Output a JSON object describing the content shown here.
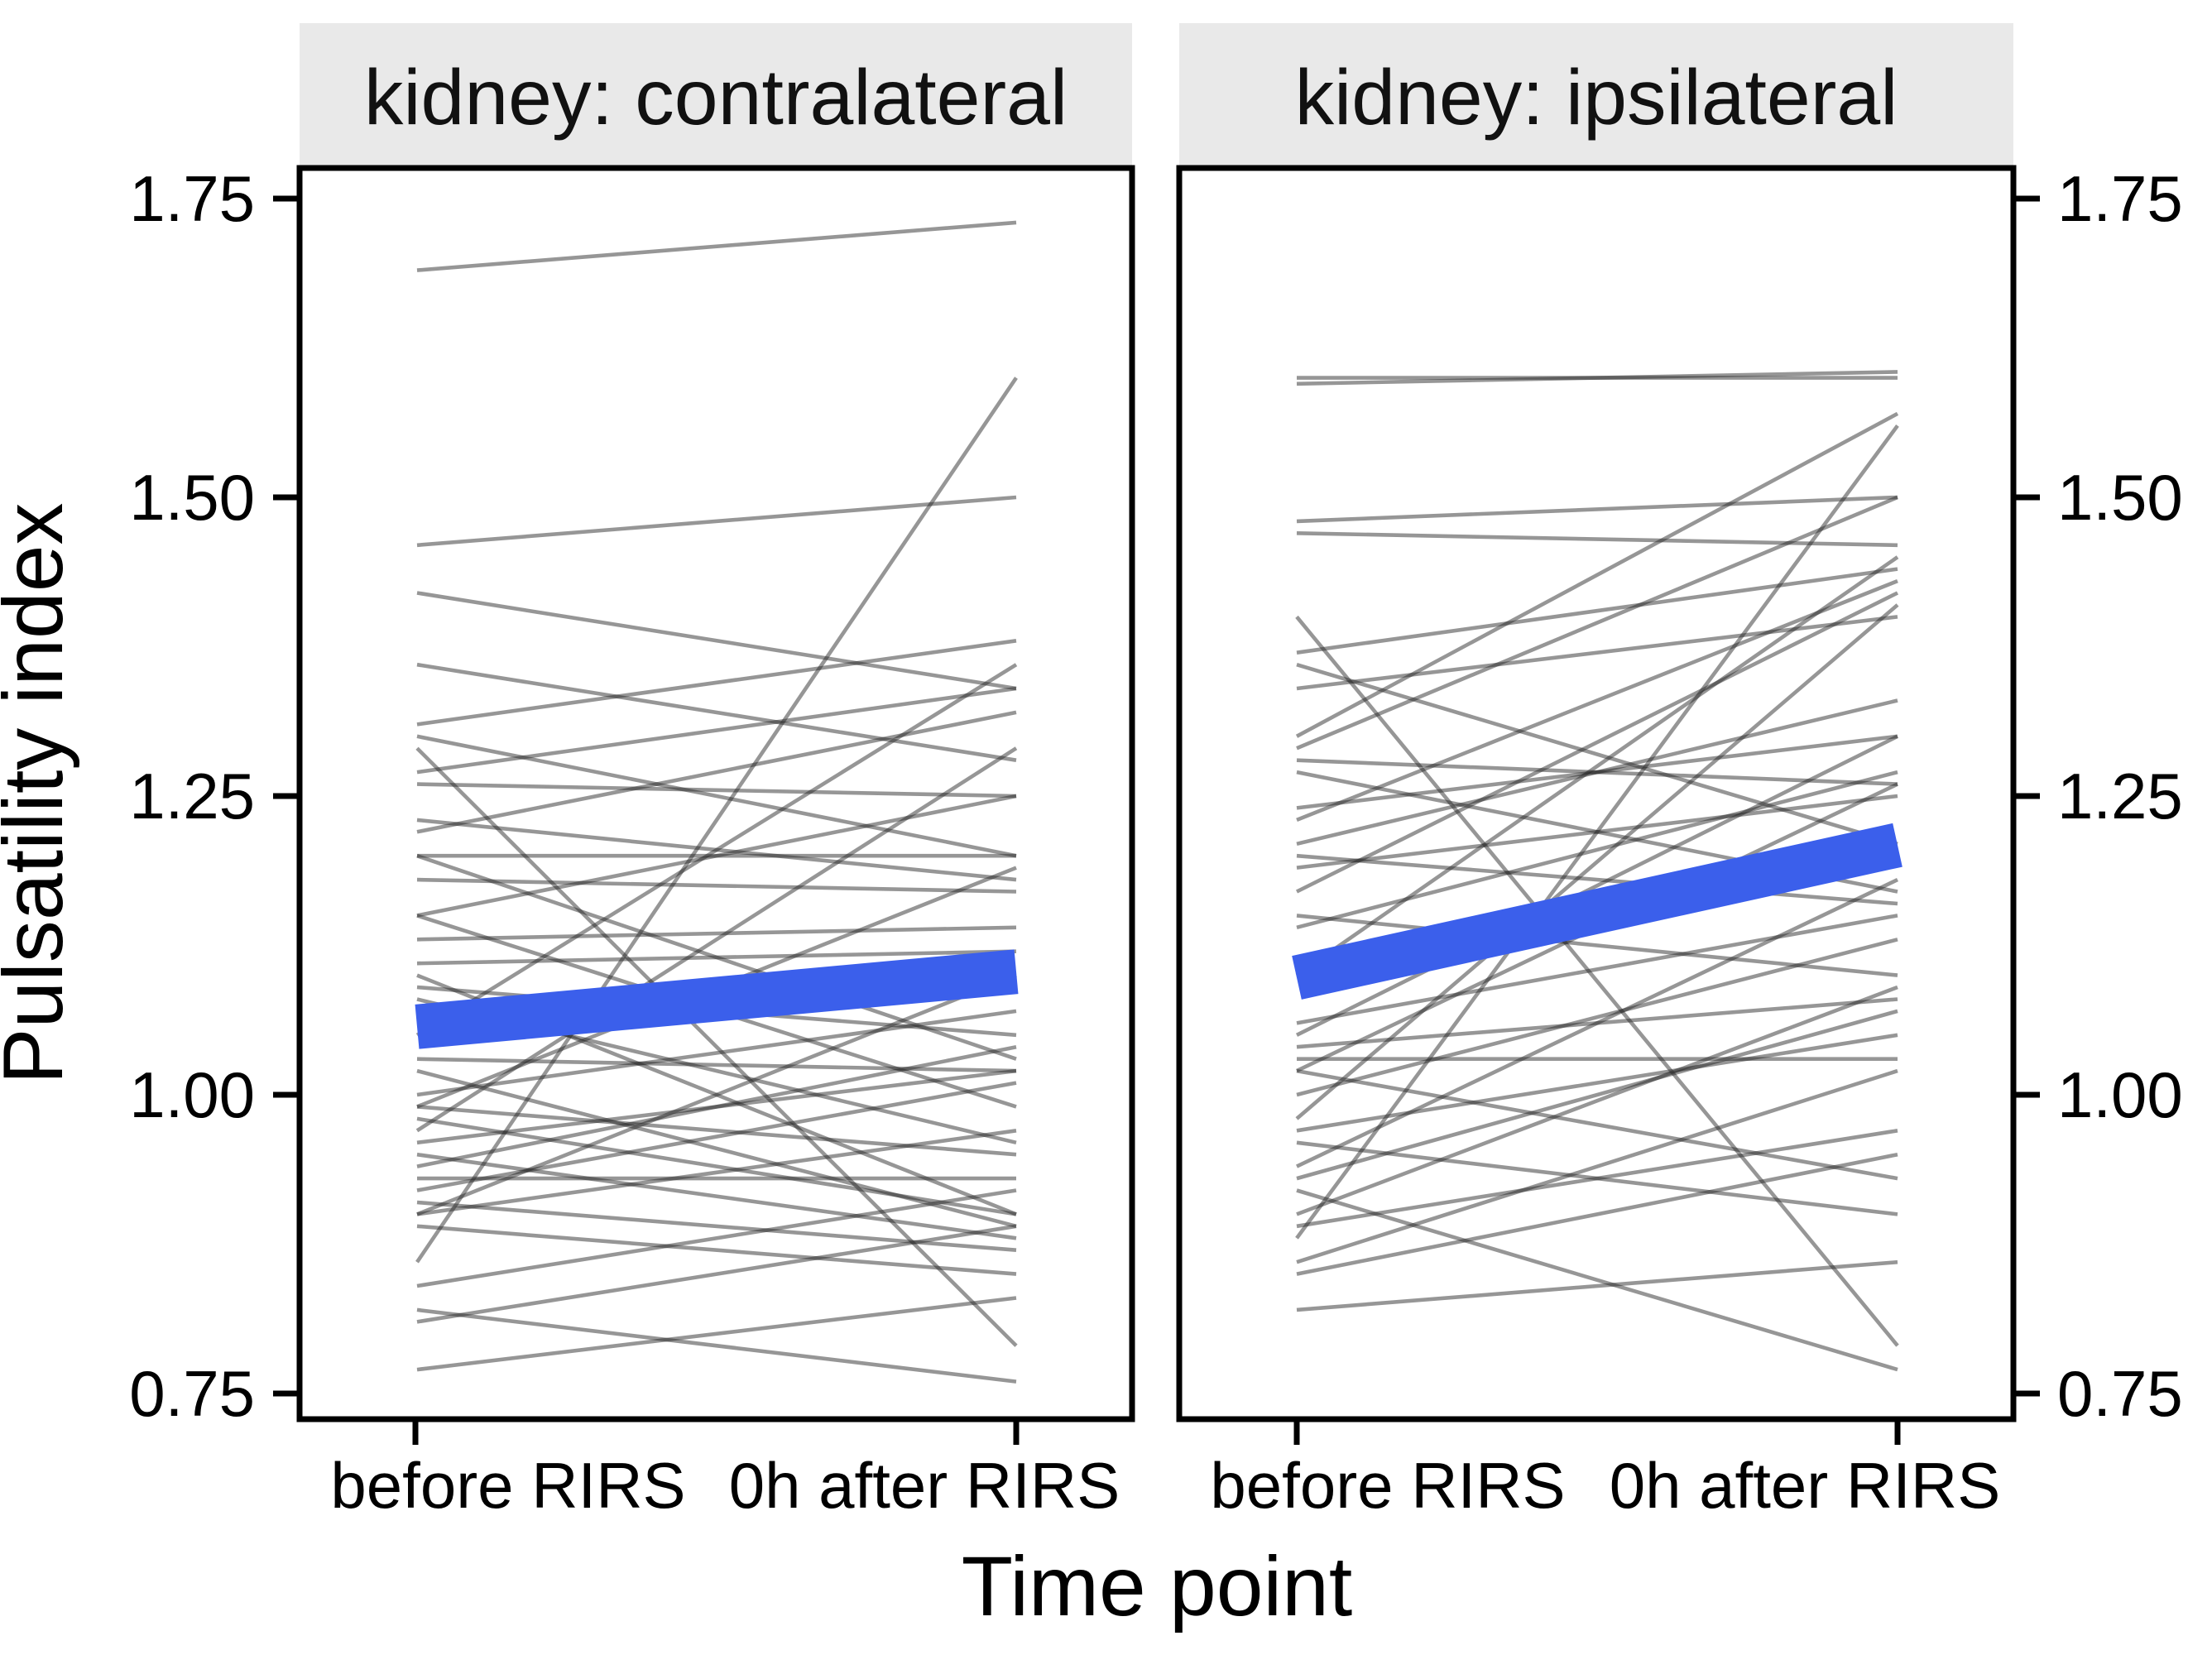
{
  "figure": {
    "colors": {
      "mean_line": "#3B5FEB",
      "subject_line": "rgba(35,35,35,0.48)",
      "strip_background": "#E9E9E9",
      "panel_border": "#000000"
    }
  },
  "chart_data": {
    "type": "line",
    "title": "",
    "xlabel": "Time point",
    "ylabel": "Pulsatility index",
    "ylim": [
      0.73,
      1.77
    ],
    "grid": "off",
    "legend": "none",
    "y_ticks": [
      1.75,
      1.5,
      1.25,
      1.0,
      0.75
    ],
    "y_tick_labels": [
      "1.75",
      "1.50",
      "1.25",
      "1.00",
      "0.75"
    ],
    "facets": [
      {
        "label": "kidney: contralateral",
        "categories": [
          "before RIRS",
          "0h after RIRS"
        ],
        "mean": [
          1.057,
          1.103
        ],
        "subjects": [
          [
            1.69,
            1.73
          ],
          [
            1.46,
            1.5
          ],
          [
            1.42,
            1.34
          ],
          [
            1.36,
            1.28
          ],
          [
            1.31,
            1.38
          ],
          [
            1.3,
            1.2
          ],
          [
            1.29,
            0.79
          ],
          [
            1.27,
            1.34
          ],
          [
            1.26,
            1.25
          ],
          [
            1.23,
            1.18
          ],
          [
            1.22,
            1.32
          ],
          [
            1.2,
            1.2
          ],
          [
            1.2,
            1.03
          ],
          [
            1.18,
            1.17
          ],
          [
            1.15,
            1.25
          ],
          [
            1.15,
            0.99
          ],
          [
            1.13,
            1.14
          ],
          [
            1.11,
            1.12
          ],
          [
            1.1,
            0.9
          ],
          [
            1.09,
            1.05
          ],
          [
            1.08,
            0.96
          ],
          [
            1.05,
            1.36
          ],
          [
            1.03,
            1.02
          ],
          [
            1.02,
            0.89
          ],
          [
            1.0,
            1.07
          ],
          [
            0.99,
            1.19
          ],
          [
            0.99,
            0.95
          ],
          [
            0.98,
            0.9
          ],
          [
            0.97,
            1.29
          ],
          [
            0.96,
            1.02
          ],
          [
            0.95,
            0.88
          ],
          [
            0.94,
            1.04
          ],
          [
            0.93,
            0.93
          ],
          [
            0.92,
            1.01
          ],
          [
            0.91,
            0.87
          ],
          [
            0.9,
            1.1
          ],
          [
            0.9,
            0.97
          ],
          [
            0.89,
            0.85
          ],
          [
            0.86,
            1.6
          ],
          [
            0.84,
            0.92
          ],
          [
            0.82,
            0.76
          ],
          [
            0.81,
            0.89
          ],
          [
            0.77,
            0.83
          ]
        ]
      },
      {
        "label": "kidney: ipsilateral",
        "categories": [
          "before RIRS",
          "0h after RIRS"
        ],
        "mean": [
          1.098,
          1.209
        ],
        "subjects": [
          [
            1.6,
            1.6
          ],
          [
            1.595,
            1.605
          ],
          [
            1.48,
            1.5
          ],
          [
            1.47,
            1.46
          ],
          [
            1.4,
            0.79
          ],
          [
            1.37,
            1.44
          ],
          [
            1.36,
            1.21
          ],
          [
            1.34,
            1.4
          ],
          [
            1.3,
            1.57
          ],
          [
            1.29,
            1.5
          ],
          [
            1.28,
            1.26
          ],
          [
            1.27,
            1.17
          ],
          [
            1.24,
            1.3
          ],
          [
            1.23,
            1.43
          ],
          [
            1.21,
            1.33
          ],
          [
            1.2,
            1.16
          ],
          [
            1.19,
            1.25
          ],
          [
            1.17,
            1.42
          ],
          [
            1.15,
            1.1
          ],
          [
            1.14,
            1.27
          ],
          [
            1.1,
            1.45
          ],
          [
            1.06,
            1.15
          ],
          [
            1.05,
            1.3
          ],
          [
            1.04,
            1.08
          ],
          [
            1.03,
            1.03
          ],
          [
            1.02,
            1.26
          ],
          [
            1.02,
            0.93
          ],
          [
            1.0,
            1.13
          ],
          [
            0.98,
            1.41
          ],
          [
            0.97,
            1.05
          ],
          [
            0.96,
            0.9
          ],
          [
            0.94,
            1.18
          ],
          [
            0.93,
            1.07
          ],
          [
            0.92,
            0.77
          ],
          [
            0.9,
            1.09
          ],
          [
            0.89,
            0.97
          ],
          [
            0.88,
            1.56
          ],
          [
            0.86,
            1.02
          ],
          [
            0.85,
            0.95
          ],
          [
            0.82,
            0.86
          ]
        ]
      }
    ]
  }
}
